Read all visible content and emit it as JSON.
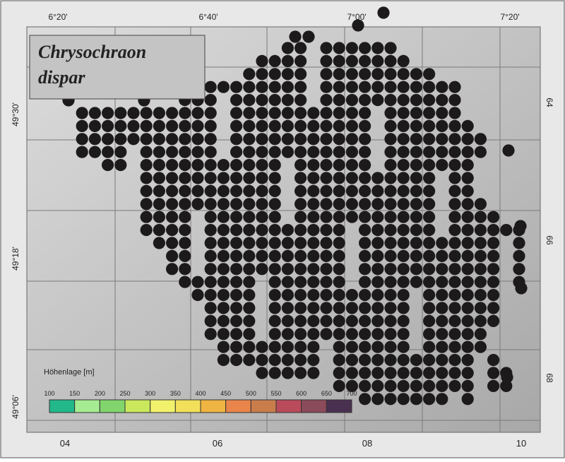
{
  "title_lines": [
    "Chrysochraon",
    "dispar"
  ],
  "top_labels": [
    "6°20'",
    "6°40'",
    "7°00'",
    "7°20'"
  ],
  "left_labels": [
    "49°30'",
    "49°18'",
    "49°06'"
  ],
  "bottom_labels": [
    "04",
    "06",
    "08",
    "10"
  ],
  "right_labels": [
    "64",
    "66",
    "68"
  ],
  "legend": {
    "title": "Höhenlage [m]",
    "ticks": [
      100,
      150,
      200,
      250,
      300,
      350,
      400,
      450,
      500,
      550,
      600,
      650,
      700
    ],
    "colors": [
      "#22b889",
      "#a6ec92",
      "#82d56c",
      "#c9e85c",
      "#f1f16c",
      "#f2e05a",
      "#f0b442",
      "#e9854a",
      "#c97d4b",
      "#b94b5a",
      "#8b4b5b",
      "#4a3050"
    ]
  }
}
